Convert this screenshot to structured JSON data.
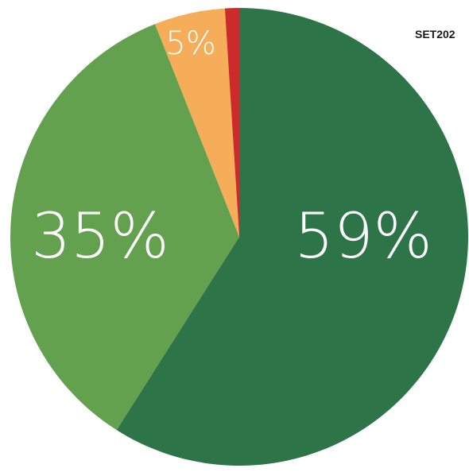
{
  "chart_data": {
    "type": "pie",
    "title": "",
    "corner_text": "SET202",
    "start_angle_deg": 0,
    "direction": "clockwise",
    "slices": [
      {
        "label": "59%",
        "value": 59,
        "color": "#2e7449"
      },
      {
        "label": "35%",
        "value": 35,
        "color": "#64a14f"
      },
      {
        "label": "5%",
        "value": 5,
        "color": "#f5ad5a"
      },
      {
        "label": "",
        "value": 1,
        "color": "#cc2b2b"
      }
    ]
  }
}
